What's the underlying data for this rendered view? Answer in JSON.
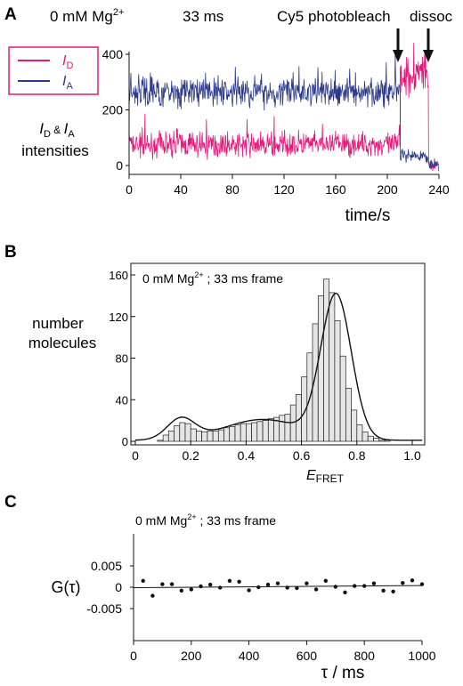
{
  "colors": {
    "donor": "#e6197a",
    "acceptor": "#2b3a8c",
    "ink": "#111111",
    "bar_fill": "#e6e6e6"
  },
  "panels": [
    {
      "id": "A",
      "label": "A",
      "condition": {
        "pre": "0 mM Mg",
        "sup": "2+",
        "post": ""
      },
      "frame_text": "33 ms",
      "annotations": [
        {
          "text": "Cy5 photobleach",
          "x": 210
        },
        {
          "text": "dissoc",
          "x": 232
        }
      ],
      "legend": [
        {
          "sym": "I",
          "sub": "D",
          "series": "donor"
        },
        {
          "sym": "I",
          "sub": "A",
          "series": "acceptor"
        }
      ],
      "ylabel_line1": {
        "i1": "I",
        "s1": "D",
        "amp": " & ",
        "i2": "I",
        "s2": "A"
      },
      "ylabel_line2": "intensities",
      "xlabel": "time/s"
    },
    {
      "id": "B",
      "label": "B",
      "condition": {
        "pre": "0 mM Mg",
        "sup": "2+",
        "post": " ; 33 ms frame"
      },
      "ylabel_lines": [
        "number",
        "molecules"
      ],
      "xlabel": {
        "main": "E",
        "sub": "FRET"
      }
    },
    {
      "id": "C",
      "label": "C",
      "condition": {
        "pre": "0 mM Mg",
        "sup": "2+",
        "post": " ; 33 ms frame"
      },
      "ylabel": "G(τ)",
      "xlabel": "τ / ms"
    }
  ],
  "chart_data": [
    {
      "type": "line",
      "panel": "A",
      "x_range": [
        0,
        240
      ],
      "ylim": [
        -20,
        430
      ],
      "xticks": [
        0,
        40,
        80,
        120,
        160,
        200,
        240
      ],
      "yticks": [
        0,
        200,
        400
      ],
      "series": [
        {
          "key": "donor",
          "name": "I_D",
          "segments": [
            {
              "x": [
                0,
                210
              ],
              "mean": 75,
              "noise": 30
            },
            {
              "x": [
                210,
                232
              ],
              "mean": 330,
              "noise": 55
            },
            {
              "x": [
                232,
                240
              ],
              "mean": 5,
              "noise": 14
            }
          ]
        },
        {
          "key": "acceptor",
          "name": "I_A",
          "segments": [
            {
              "x": [
                0,
                210
              ],
              "mean": 265,
              "noise": 38
            },
            {
              "x": [
                210,
                232
              ],
              "mean": 30,
              "noise": 18
            },
            {
              "x": [
                232,
                240
              ],
              "mean": 5,
              "noise": 14
            }
          ]
        }
      ]
    },
    {
      "type": "bar",
      "panel": "B",
      "bin_width": 0.02,
      "bin_start": 0.0,
      "values": [
        0,
        0,
        0,
        0,
        1,
        6,
        10,
        15,
        18,
        17,
        12,
        10,
        9,
        10,
        10,
        11,
        13,
        14,
        16,
        17,
        17,
        18,
        19,
        20,
        22,
        23,
        25,
        26,
        35,
        45,
        62,
        85,
        113,
        140,
        156,
        143,
        116,
        82,
        51,
        30,
        16,
        9,
        5,
        3,
        1,
        1,
        0,
        0,
        0,
        0
      ],
      "fit": [
        {
          "amp": 20,
          "mu": 0.165,
          "sigma": 0.05
        },
        {
          "amp": 20,
          "mu": 0.46,
          "sigma": 0.14
        },
        {
          "amp": 138,
          "mu": 0.725,
          "sigma": 0.055
        }
      ],
      "fit_baseline": 1,
      "xlim": [
        0,
        1.05
      ],
      "ylim": [
        0,
        168
      ],
      "xticks": [
        0,
        0.2,
        0.4,
        0.6,
        0.8,
        1.0
      ],
      "xtick_labels": [
        "0",
        "0.2",
        "0.4",
        "0.6",
        "0.8",
        "1.0"
      ],
      "yticks": [
        0,
        40,
        80,
        120,
        160
      ]
    },
    {
      "type": "scatter",
      "panel": "C",
      "x": [
        33,
        66,
        100,
        133,
        166,
        200,
        233,
        266,
        300,
        333,
        366,
        400,
        433,
        466,
        500,
        533,
        566,
        600,
        633,
        666,
        700,
        733,
        766,
        800,
        833,
        866,
        900,
        933,
        966,
        1000
      ],
      "y": [
        0.0015,
        -0.002,
        0.0007,
        0.0007,
        -0.0008,
        -0.0005,
        0.0002,
        0.0006,
        -0.0001,
        0.0015,
        0.0013,
        -0.0007,
        0.0,
        0.0006,
        0.0009,
        -0.0001,
        -0.0002,
        0.0009,
        -0.0005,
        0.0015,
        0.0001,
        -0.0012,
        0.0003,
        0.0003,
        0.0009,
        -0.0008,
        -0.001,
        0.001,
        0.0016,
        0.0007
      ],
      "fit_line": {
        "x": [
          0,
          1000
        ],
        "y": [
          -0.0001,
          0.0004
        ]
      },
      "xlim": [
        0,
        1000
      ],
      "ylim": [
        -0.0075,
        0.0075
      ],
      "xticks": [
        0,
        200,
        400,
        600,
        800,
        1000
      ],
      "yticks": [
        0.005,
        0,
        -0.005
      ],
      "ytick_labels": [
        "0.005",
        "0",
        "-0.005"
      ]
    }
  ]
}
